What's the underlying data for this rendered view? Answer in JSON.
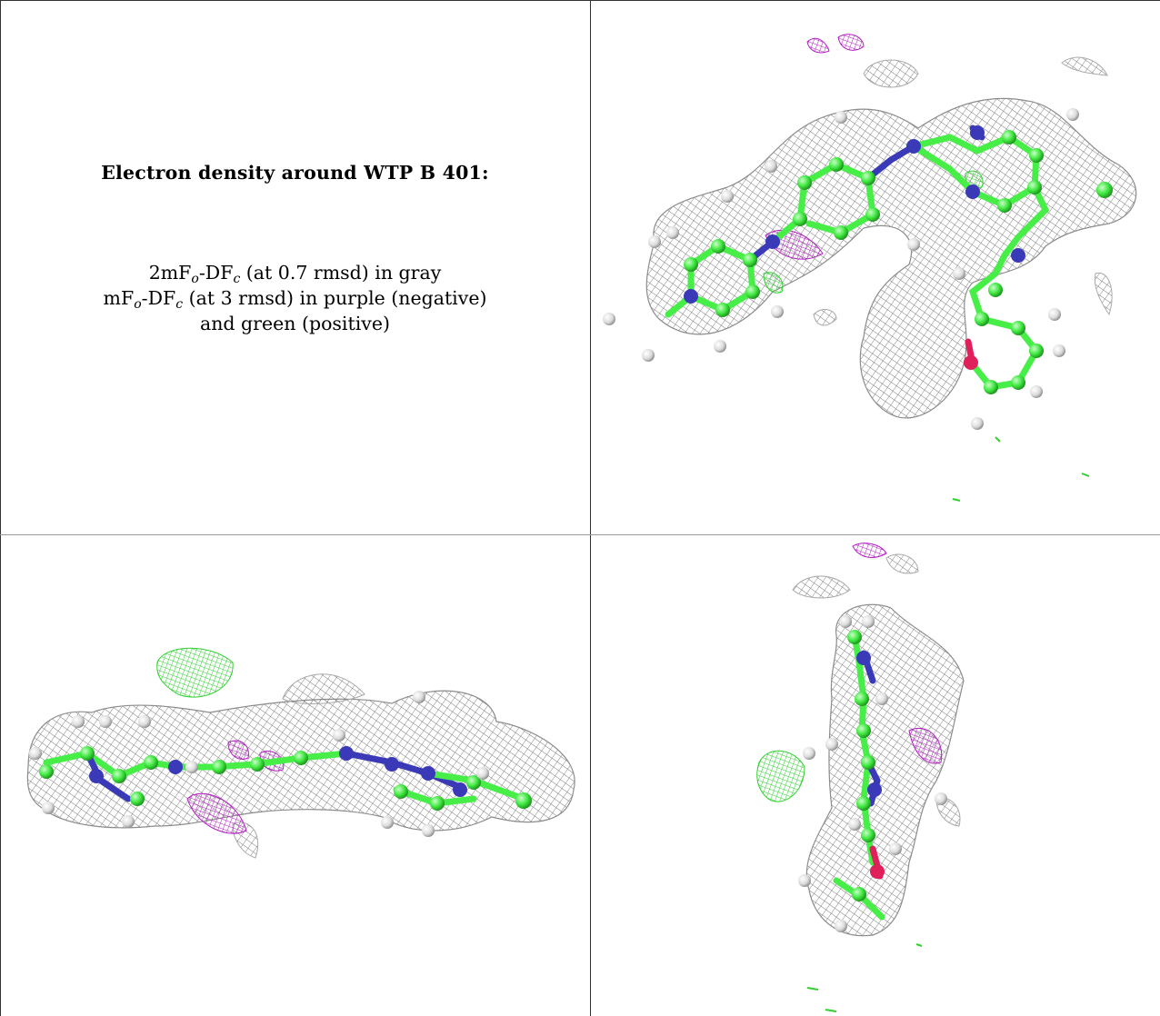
{
  "caption": {
    "title": "Electron density around WTP B 401:",
    "line1": {
      "prefix": "2mF",
      "sub1": "o",
      "mid": "-DF",
      "sub2": "c",
      "suffix": " (at 0.7 rmsd) in gray"
    },
    "line2": {
      "prefix": "mF",
      "sub1": "o",
      "mid": "-DF",
      "sub2": "c",
      "suffix": " (at 3 rmsd) in purple (negative)"
    },
    "line3": "and green (positive)"
  },
  "colors": {
    "mesh_gray": "#8c8c8c",
    "difference_negative": "#b020c0",
    "difference_positive": "#38e038",
    "carbon": "#48ee48",
    "nitrogen": "#3a3ab8",
    "oxygen": "#e0205a",
    "hydrogen": "#e6e6e6",
    "background": "#ffffff"
  },
  "panels": [
    {
      "name": "top-right-view",
      "content": "ligand-with-density-mesh"
    },
    {
      "name": "bottom-left-view",
      "content": "ligand-with-density-mesh"
    },
    {
      "name": "bottom-right-view",
      "content": "ligand-with-density-mesh"
    }
  ]
}
